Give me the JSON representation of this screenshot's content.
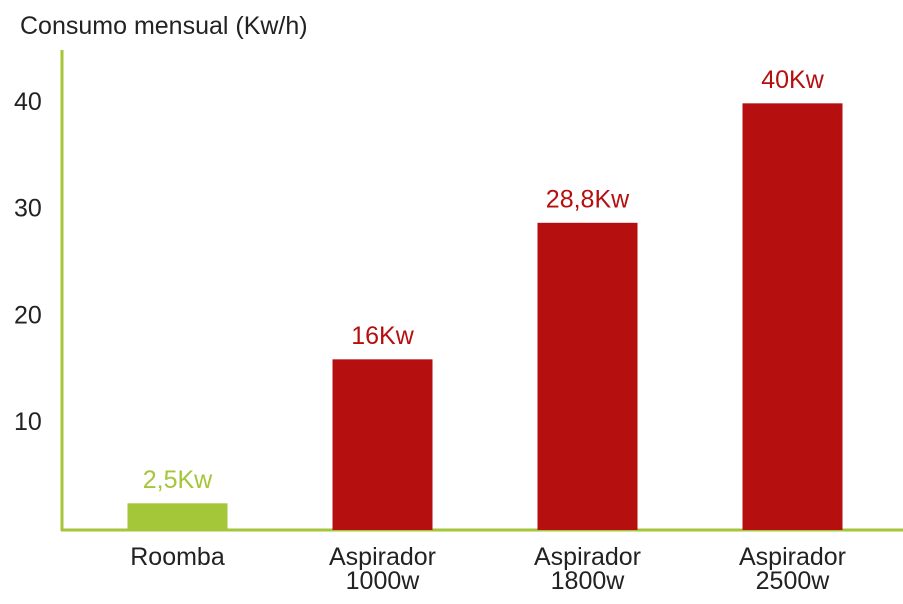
{
  "chart_data": {
    "type": "bar",
    "title": "Consumo mensual (Kw/h)",
    "categories": [
      "Roomba",
      "Aspirador\n1000w",
      "Aspirador\n1800w",
      "Aspirador\n2500w"
    ],
    "values": [
      2.5,
      16,
      28.8,
      40
    ],
    "value_labels": [
      "2,5Kw",
      "16Kw",
      "28,8Kw",
      "40Kw"
    ],
    "colors": [
      "#a4c639",
      "#b50f10",
      "#b50f10",
      "#b50f10"
    ],
    "ylim": [
      0,
      45
    ],
    "yticks": [
      10,
      20,
      30,
      40
    ],
    "grid": false
  }
}
